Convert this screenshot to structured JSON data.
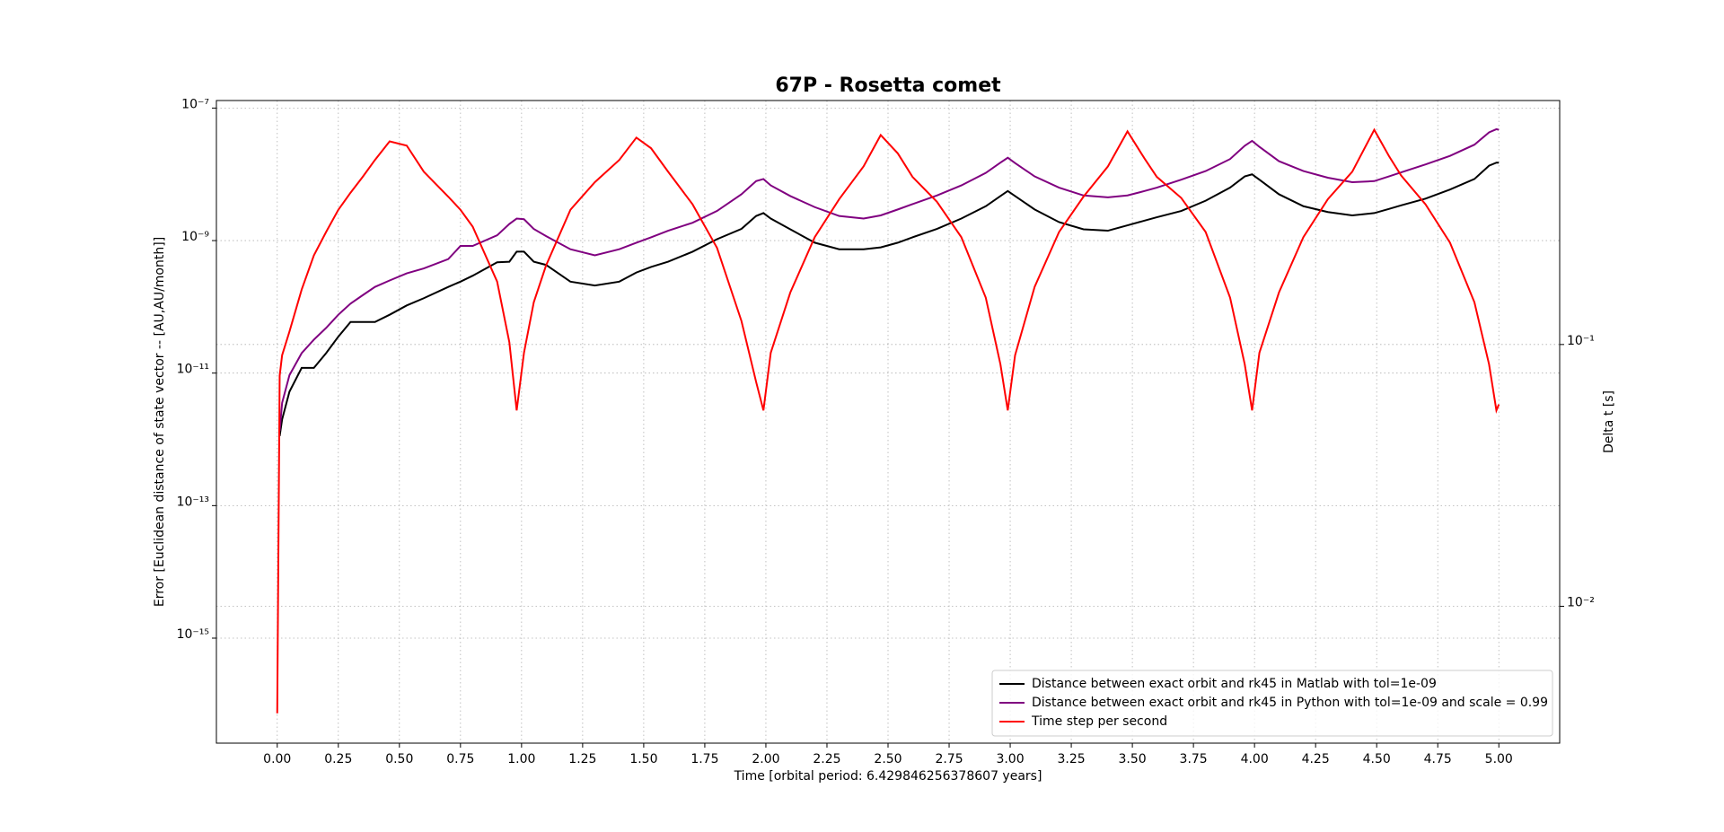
{
  "chart_data": {
    "type": "line",
    "title": "67P - Rosetta comet",
    "x_label": "Time [orbital period: 6.429846256378607 years]",
    "y_label": "Error [Euclidean distance of state vector -- [AU,AU/month]]",
    "y2_label": "Delta t [s]",
    "yscale": "log",
    "y2scale": "log",
    "grid": true,
    "legend": "lower right",
    "xlim": [
      -0.249,
      5.249
    ],
    "xticks": [
      {
        "value": 0,
        "label": "0.00"
      },
      {
        "value": 0.25,
        "label": "0.25"
      },
      {
        "value": 0.5,
        "label": "0.50"
      },
      {
        "value": 0.75,
        "label": "0.75"
      },
      {
        "value": 1,
        "label": "1.00"
      },
      {
        "value": 1.25,
        "label": "1.25"
      },
      {
        "value": 1.5,
        "label": "1.50"
      },
      {
        "value": 1.75,
        "label": "1.75"
      },
      {
        "value": 2,
        "label": "2.00"
      },
      {
        "value": 2.25,
        "label": "2.25"
      },
      {
        "value": 2.5,
        "label": "2.50"
      },
      {
        "value": 2.75,
        "label": "2.75"
      },
      {
        "value": 3,
        "label": "3.00"
      },
      {
        "value": 3.25,
        "label": "3.25"
      },
      {
        "value": 3.5,
        "label": "3.50"
      },
      {
        "value": 3.75,
        "label": "3.75"
      },
      {
        "value": 4,
        "label": "4.00"
      },
      {
        "value": 4.25,
        "label": "4.25"
      },
      {
        "value": 4.5,
        "label": "4.50"
      },
      {
        "value": 4.75,
        "label": "4.75"
      },
      {
        "value": 5,
        "label": "5.00"
      }
    ],
    "ylim": [
      2.6e-17,
      1.3e-07
    ],
    "yticks": [
      {
        "value": 1e-15,
        "label": "10⁻¹⁵"
      },
      {
        "value": 1e-13,
        "label": "10⁻¹³"
      },
      {
        "value": 1e-11,
        "label": "10⁻¹¹"
      },
      {
        "value": 1e-09,
        "label": "10⁻⁹"
      },
      {
        "value": 1e-07,
        "label": "10⁻⁷"
      }
    ],
    "y2lim": [
      0.003,
      0.855
    ],
    "y2ticks": [
      {
        "value": 0.01,
        "label": "10⁻²"
      },
      {
        "value": 0.1,
        "label": "10⁻¹"
      }
    ],
    "x": [
      0,
      0.01,
      0.02,
      0.05,
      0.1,
      0.15,
      0.2,
      0.25,
      0.3,
      0.35,
      0.4,
      0.46,
      0.53,
      0.6,
      0.7,
      0.75,
      0.8,
      0.9,
      0.95,
      0.98,
      1.01,
      1.05,
      1.1,
      1.2,
      1.3,
      1.4,
      1.47,
      1.53,
      1.6,
      1.7,
      1.8,
      1.9,
      1.96,
      1.99,
      2.02,
      2.1,
      2.2,
      2.3,
      2.4,
      2.47,
      2.54,
      2.6,
      2.7,
      2.8,
      2.9,
      2.96,
      2.99,
      3.02,
      3.1,
      3.2,
      3.3,
      3.4,
      3.48,
      3.55,
      3.6,
      3.7,
      3.8,
      3.9,
      3.96,
      3.99,
      4.02,
      4.1,
      4.2,
      4.3,
      4.4,
      4.49,
      4.55,
      4.6,
      4.7,
      4.8,
      4.9,
      4.96,
      4.99,
      5.0
    ],
    "series": [
      {
        "name": "Distance between exact orbit and rk45 in Matlab with tol=1e-09",
        "color": "#000000",
        "values": [
          null,
          1.12e-12,
          2e-12,
          5.25e-12,
          1.2e-11,
          1.2e-11,
          2e-11,
          3.55e-11,
          5.9e-11,
          5.9e-11,
          5.9e-11,
          7.6e-11,
          1.05e-10,
          1.35e-10,
          2e-10,
          2.4e-10,
          2.95e-10,
          4.7e-10,
          4.8e-10,
          6.8e-10,
          6.8e-10,
          4.8e-10,
          4.3e-10,
          2.4e-10,
          2.1e-10,
          2.4e-10,
          3.3e-10,
          4e-10,
          4.8e-10,
          6.8e-10,
          1.05e-09,
          1.5e-09,
          2.35e-09,
          2.6e-09,
          2.15e-09,
          1.48e-09,
          9.3e-10,
          7.4e-10,
          7.4e-10,
          7.9e-10,
          9.3e-10,
          1.12e-09,
          1.5e-09,
          2.15e-09,
          3.3e-09,
          4.7e-09,
          5.6e-09,
          4.7e-09,
          2.95e-09,
          1.9e-09,
          1.48e-09,
          1.41e-09,
          1.7e-09,
          2e-09,
          2.25e-09,
          2.8e-09,
          4e-09,
          6.3e-09,
          9.3e-09,
          1e-08,
          8.3e-09,
          5e-09,
          3.3e-09,
          2.7e-09,
          2.4e-09,
          2.6e-09,
          3e-09,
          3.4e-09,
          4.3e-09,
          5.9e-09,
          8.5e-09,
          1.35e-08,
          1.5e-08,
          1.5e-08
        ]
      },
      {
        "name": "Distance between exact orbit and rk45 in Python with tol=1e-09 and scale = 0.99",
        "color": "#800080",
        "values": [
          null,
          1.35e-12,
          3.55e-12,
          9.3e-12,
          2e-11,
          3.2e-11,
          4.8e-11,
          7.6e-11,
          1.12e-10,
          1.5e-10,
          2e-10,
          2.5e-10,
          3.2e-10,
          3.8e-10,
          5.25e-10,
          8.3e-10,
          8.3e-10,
          1.2e-09,
          1.78e-09,
          2.15e-09,
          2.1e-09,
          1.5e-09,
          1.17e-09,
          7.4e-10,
          6e-10,
          7.4e-10,
          9.3e-10,
          1.12e-09,
          1.41e-09,
          1.86e-09,
          2.8e-09,
          5e-09,
          7.9e-09,
          8.5e-09,
          6.8e-09,
          4.7e-09,
          3.2e-09,
          2.35e-09,
          2.15e-09,
          2.4e-09,
          2.95e-09,
          3.55e-09,
          4.8e-09,
          6.8e-09,
          1.05e-08,
          1.5e-08,
          1.78e-08,
          1.48e-08,
          9.3e-09,
          6.3e-09,
          4.8e-09,
          4.5e-09,
          4.8e-09,
          5.6e-09,
          6.3e-09,
          8.3e-09,
          1.12e-08,
          1.7e-08,
          2.7e-08,
          3.2e-08,
          2.6e-08,
          1.58e-08,
          1.12e-08,
          8.9e-09,
          7.6e-09,
          7.9e-09,
          9.3e-09,
          1.07e-08,
          1.41e-08,
          1.9e-08,
          2.8e-08,
          4.3e-08,
          4.8e-08,
          4.7e-08
        ]
      },
      {
        "name": "Time step per second",
        "color": "#ff0000",
        "axis": "y2",
        "values": [
          0.0039,
          0.076,
          0.091,
          0.112,
          0.162,
          0.219,
          0.269,
          0.327,
          0.38,
          0.437,
          0.507,
          0.597,
          0.575,
          0.457,
          0.367,
          0.327,
          0.282,
          0.174,
          0.102,
          0.056,
          0.093,
          0.145,
          0.2,
          0.327,
          0.417,
          0.507,
          0.617,
          0.562,
          0.457,
          0.343,
          0.234,
          0.123,
          0.072,
          0.056,
          0.093,
          0.158,
          0.257,
          0.359,
          0.479,
          0.631,
          0.537,
          0.437,
          0.351,
          0.257,
          0.151,
          0.084,
          0.056,
          0.091,
          0.166,
          0.269,
          0.367,
          0.479,
          0.652,
          0.513,
          0.437,
          0.363,
          0.269,
          0.151,
          0.084,
          0.056,
          0.093,
          0.158,
          0.257,
          0.359,
          0.457,
          0.661,
          0.525,
          0.442,
          0.343,
          0.245,
          0.145,
          0.084,
          0.056,
          0.059
        ]
      }
    ]
  }
}
